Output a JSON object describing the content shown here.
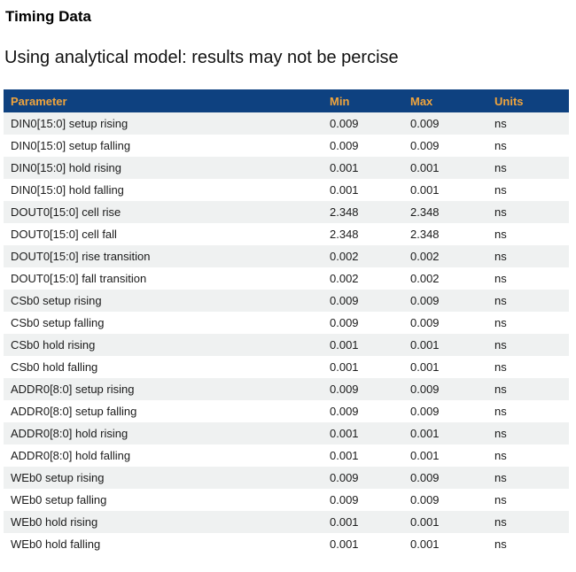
{
  "page": {
    "title": "Timing Data",
    "subtitle": "Using analytical model: results may not be percise"
  },
  "table": {
    "columns": [
      "Parameter",
      "Min",
      "Max",
      "Units"
    ],
    "rows": [
      {
        "parameter": "DIN0[15:0] setup rising",
        "min": "0.009",
        "max": "0.009",
        "units": "ns"
      },
      {
        "parameter": "DIN0[15:0] setup falling",
        "min": "0.009",
        "max": "0.009",
        "units": "ns"
      },
      {
        "parameter": "DIN0[15:0] hold rising",
        "min": "0.001",
        "max": "0.001",
        "units": "ns"
      },
      {
        "parameter": "DIN0[15:0] hold falling",
        "min": "0.001",
        "max": "0.001",
        "units": "ns"
      },
      {
        "parameter": "DOUT0[15:0] cell rise",
        "min": "2.348",
        "max": "2.348",
        "units": "ns"
      },
      {
        "parameter": "DOUT0[15:0] cell fall",
        "min": "2.348",
        "max": "2.348",
        "units": "ns"
      },
      {
        "parameter": "DOUT0[15:0] rise transition",
        "min": "0.002",
        "max": "0.002",
        "units": "ns"
      },
      {
        "parameter": "DOUT0[15:0] fall transition",
        "min": "0.002",
        "max": "0.002",
        "units": "ns"
      },
      {
        "parameter": "CSb0 setup rising",
        "min": "0.009",
        "max": "0.009",
        "units": "ns"
      },
      {
        "parameter": "CSb0 setup falling",
        "min": "0.009",
        "max": "0.009",
        "units": "ns"
      },
      {
        "parameter": "CSb0 hold rising",
        "min": "0.001",
        "max": "0.001",
        "units": "ns"
      },
      {
        "parameter": "CSb0 hold falling",
        "min": "0.001",
        "max": "0.001",
        "units": "ns"
      },
      {
        "parameter": "ADDR0[8:0] setup rising",
        "min": "0.009",
        "max": "0.009",
        "units": "ns"
      },
      {
        "parameter": "ADDR0[8:0] setup falling",
        "min": "0.009",
        "max": "0.009",
        "units": "ns"
      },
      {
        "parameter": "ADDR0[8:0] hold rising",
        "min": "0.001",
        "max": "0.001",
        "units": "ns"
      },
      {
        "parameter": "ADDR0[8:0] hold falling",
        "min": "0.001",
        "max": "0.001",
        "units": "ns"
      },
      {
        "parameter": "WEb0 setup rising",
        "min": "0.009",
        "max": "0.009",
        "units": "ns"
      },
      {
        "parameter": "WEb0 setup falling",
        "min": "0.009",
        "max": "0.009",
        "units": "ns"
      },
      {
        "parameter": "WEb0 hold rising",
        "min": "0.001",
        "max": "0.001",
        "units": "ns"
      },
      {
        "parameter": "WEb0 hold falling",
        "min": "0.001",
        "max": "0.001",
        "units": "ns"
      }
    ]
  },
  "colors": {
    "header_bg": "#0e4180",
    "header_text": "#f0a43c",
    "row_alt_bg": "#eff1f1",
    "body_text": "#1b1b1b",
    "page_bg": "#ffffff"
  }
}
